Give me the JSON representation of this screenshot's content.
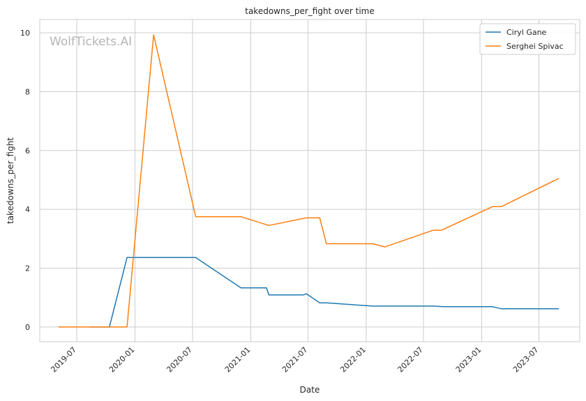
{
  "chart_data": {
    "type": "line",
    "title": "takedowns_per_fight over time",
    "xlabel": "Date",
    "ylabel": "takedowns_per_fight",
    "watermark": "WolfTickets.AI",
    "x_ticks": [
      "2019-07",
      "2020-01",
      "2020-07",
      "2021-01",
      "2021-07",
      "2022-01",
      "2022-07",
      "2023-01",
      "2023-07"
    ],
    "y_ticks": [
      0,
      2,
      4,
      6,
      8,
      10
    ],
    "xlim": [
      "2019-03-06",
      "2023-11-07"
    ],
    "ylim": [
      -0.5,
      10.45
    ],
    "grid": true,
    "legend_position": "top-right",
    "series": [
      {
        "name": "Ciryl Gane",
        "color": "#1f77b4",
        "points": [
          [
            "2019-08-10",
            0
          ],
          [
            "2019-10-12",
            0
          ],
          [
            "2019-12-07",
            2.36
          ],
          [
            "2020-07-11",
            2.36
          ],
          [
            "2020-12-01",
            1.33
          ],
          [
            "2021-02-20",
            1.33
          ],
          [
            "2021-02-27",
            1.09
          ],
          [
            "2021-06-16",
            1.09
          ],
          [
            "2021-06-26",
            1.13
          ],
          [
            "2021-08-07",
            0.82
          ],
          [
            "2021-08-28",
            0.82
          ],
          [
            "2022-01-22",
            0.71
          ],
          [
            "2022-08-01",
            0.71
          ],
          [
            "2022-09-03",
            0.69
          ],
          [
            "2023-02-04",
            0.69
          ],
          [
            "2023-03-04",
            0.62
          ],
          [
            "2023-09-02",
            0.62
          ]
        ]
      },
      {
        "name": "Serghei Spivac",
        "color": "#ff7f0e",
        "points": [
          [
            "2019-05-04",
            0
          ],
          [
            "2019-12-07",
            0
          ],
          [
            "2020-02-29",
            9.93
          ],
          [
            "2020-07-11",
            3.75
          ],
          [
            "2020-12-01",
            3.75
          ],
          [
            "2021-02-27",
            3.45
          ],
          [
            "2021-06-26",
            3.71
          ],
          [
            "2021-08-07",
            3.71
          ],
          [
            "2021-08-28",
            2.83
          ],
          [
            "2022-01-22",
            2.83
          ],
          [
            "2022-03-01",
            2.72
          ],
          [
            "2022-08-01",
            3.29
          ],
          [
            "2022-08-27",
            3.29
          ],
          [
            "2023-02-04",
            4.09
          ],
          [
            "2023-03-04",
            4.09
          ],
          [
            "2023-09-02",
            5.05
          ]
        ]
      }
    ]
  }
}
